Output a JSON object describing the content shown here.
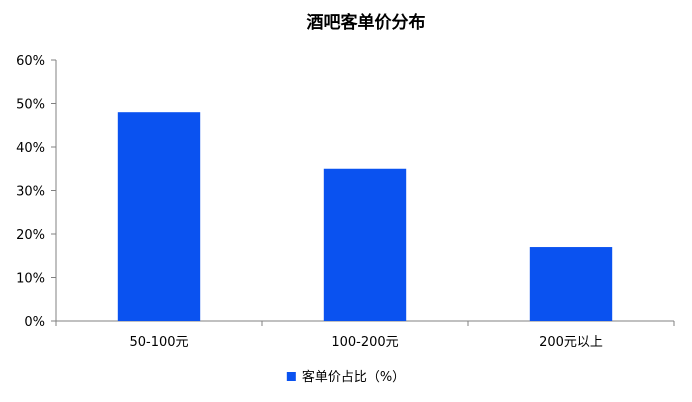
{
  "chart_data": {
    "type": "bar",
    "title": "酒吧客单价分布",
    "categories": [
      "50-100元",
      "100-200元",
      "200元以上"
    ],
    "series": [
      {
        "name": "客单价占比（%）",
        "values": [
          48,
          35,
          17
        ],
        "color": "#0a52f0"
      }
    ],
    "ylim": [
      0,
      60
    ],
    "yticks": [
      0,
      10,
      20,
      30,
      40,
      50,
      60
    ],
    "ytick_labels": [
      "0%",
      "10%",
      "20%",
      "30%",
      "40%",
      "50%",
      "60%"
    ],
    "xlabel": "",
    "ylabel": "",
    "grid": false,
    "legend_position": "bottom-center"
  }
}
